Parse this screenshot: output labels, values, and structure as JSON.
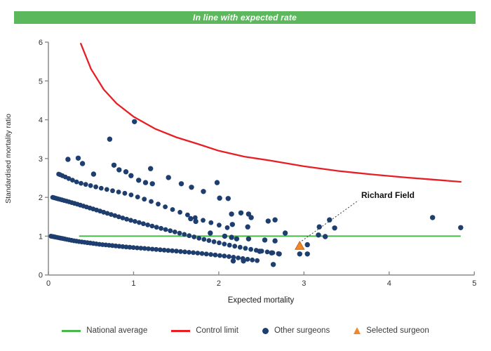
{
  "banner": {
    "title": "In line with expected rate"
  },
  "axes": {
    "xlabel": "Expected mortality",
    "ylabel": "Standardised mortality ratio"
  },
  "annotation": {
    "label": "Richard Field"
  },
  "legend": {
    "items": [
      {
        "label": "National average",
        "swatch": "line",
        "color": "#4AB74A"
      },
      {
        "label": "Control limit",
        "swatch": "line",
        "color": "#E81E25"
      },
      {
        "label": "Other surgeons",
        "swatch": "dot",
        "color": "#1D3E6F"
      },
      {
        "label": "Selected surgeon",
        "swatch": "triangle",
        "color": "#EF8829"
      }
    ]
  },
  "colors": {
    "banner": "#5CB85C",
    "green_line": "#4AB74A",
    "red": "#E81E25",
    "navy": "#1D3E6F",
    "orange": "#EF8829",
    "orange_edge": "#C2660F",
    "axis": "#8A8A8A",
    "tick_text": "#303030",
    "annotation_line": "#3c3c3c"
  },
  "chart_data": {
    "type": "scatter",
    "title": "In line with expected rate",
    "xlabel": "Expected mortality",
    "ylabel": "Standardised mortality ratio",
    "xlim": [
      0,
      5
    ],
    "ylim": [
      0,
      6
    ],
    "x_ticks": [
      0,
      1,
      2,
      3,
      4,
      5
    ],
    "y_ticks": [
      0,
      1,
      2,
      3,
      4,
      5,
      6
    ],
    "grid": false,
    "legend_position": "bottom",
    "national_average": {
      "y": 1.0,
      "x_start": 0.36,
      "x_end": 4.84
    },
    "control_limit_points": [
      [
        0.38,
        5.96
      ],
      [
        0.5,
        5.31
      ],
      [
        0.65,
        4.78
      ],
      [
        0.8,
        4.42
      ],
      [
        1.0,
        4.08
      ],
      [
        1.25,
        3.77
      ],
      [
        1.5,
        3.55
      ],
      [
        1.75,
        3.38
      ],
      [
        2.0,
        3.2
      ],
      [
        2.3,
        3.05
      ],
      [
        2.6,
        2.95
      ],
      [
        3.0,
        2.8
      ],
      [
        3.4,
        2.68
      ],
      [
        3.8,
        2.59
      ],
      [
        4.2,
        2.51
      ],
      [
        4.5,
        2.46
      ],
      [
        4.84,
        2.4
      ]
    ],
    "surgeon_bands": [
      {
        "count": 62,
        "control": [
          [
            0.03,
            1.0
          ],
          [
            0.3,
            0.88
          ],
          [
            0.6,
            0.79
          ],
          [
            0.9,
            0.725
          ],
          [
            1.2,
            0.67
          ],
          [
            1.5,
            0.615
          ],
          [
            1.8,
            0.555
          ],
          [
            2.1,
            0.48
          ],
          [
            2.45,
            0.37
          ]
        ]
      },
      {
        "count": 58,
        "control": [
          [
            0.05,
            2.0
          ],
          [
            0.3,
            1.85
          ],
          [
            0.6,
            1.65
          ],
          [
            0.9,
            1.45
          ],
          [
            1.2,
            1.27
          ],
          [
            1.5,
            1.1
          ],
          [
            1.8,
            0.93
          ],
          [
            2.1,
            0.78
          ],
          [
            2.4,
            0.65
          ],
          [
            2.7,
            0.55
          ]
        ]
      },
      {
        "count": 30,
        "control": [
          [
            0.12,
            2.6
          ],
          [
            0.35,
            2.38
          ],
          [
            0.65,
            2.22
          ],
          [
            0.95,
            2.08
          ],
          [
            1.2,
            1.9
          ],
          [
            1.5,
            1.65
          ],
          [
            1.8,
            1.42
          ],
          [
            2.1,
            1.22
          ]
        ]
      }
    ],
    "other_surgeons": [
      [
        0.23,
        2.98
      ],
      [
        0.35,
        3.01
      ],
      [
        0.4,
        2.87
      ],
      [
        0.53,
        2.6
      ],
      [
        0.72,
        3.5
      ],
      [
        0.77,
        2.83
      ],
      [
        0.83,
        2.71
      ],
      [
        0.91,
        2.66
      ],
      [
        0.97,
        2.56
      ],
      [
        1.01,
        3.95
      ],
      [
        1.06,
        2.44
      ],
      [
        1.14,
        2.38
      ],
      [
        1.2,
        2.74
      ],
      [
        1.22,
        2.35
      ],
      [
        1.41,
        2.51
      ],
      [
        1.56,
        2.35
      ],
      [
        1.68,
        2.26
      ],
      [
        1.82,
        2.15
      ],
      [
        1.98,
        2.38
      ],
      [
        2.01,
        1.98
      ],
      [
        2.11,
        1.97
      ],
      [
        1.67,
        1.45
      ],
      [
        1.73,
        1.38
      ],
      [
        2.15,
        1.57
      ],
      [
        2.26,
        1.6
      ],
      [
        2.35,
        1.57
      ],
      [
        2.16,
        1.3
      ],
      [
        2.34,
        1.24
      ],
      [
        2.38,
        1.48
      ],
      [
        2.58,
        1.39
      ],
      [
        2.66,
        1.42
      ],
      [
        2.78,
        1.08
      ],
      [
        1.9,
        1.08
      ],
      [
        2.07,
        1.0
      ],
      [
        2.15,
        0.97
      ],
      [
        2.21,
        0.93
      ],
      [
        2.35,
        0.93
      ],
      [
        2.54,
        0.9
      ],
      [
        2.66,
        0.88
      ],
      [
        3.17,
        1.03
      ],
      [
        3.25,
        0.99
      ],
      [
        2.48,
        0.61
      ],
      [
        2.62,
        0.57
      ],
      [
        2.71,
        0.54
      ],
      [
        2.17,
        0.36
      ],
      [
        2.29,
        0.36
      ],
      [
        2.64,
        0.27
      ],
      [
        3.04,
        0.78
      ],
      [
        2.95,
        0.54
      ],
      [
        3.04,
        0.54
      ],
      [
        3.18,
        1.24
      ],
      [
        3.3,
        1.42
      ],
      [
        3.36,
        1.21
      ],
      [
        4.51,
        1.48
      ],
      [
        4.84,
        1.22
      ]
    ],
    "selected_surgeon": {
      "x": 2.95,
      "y": 0.75,
      "label": "Richard Field"
    }
  }
}
